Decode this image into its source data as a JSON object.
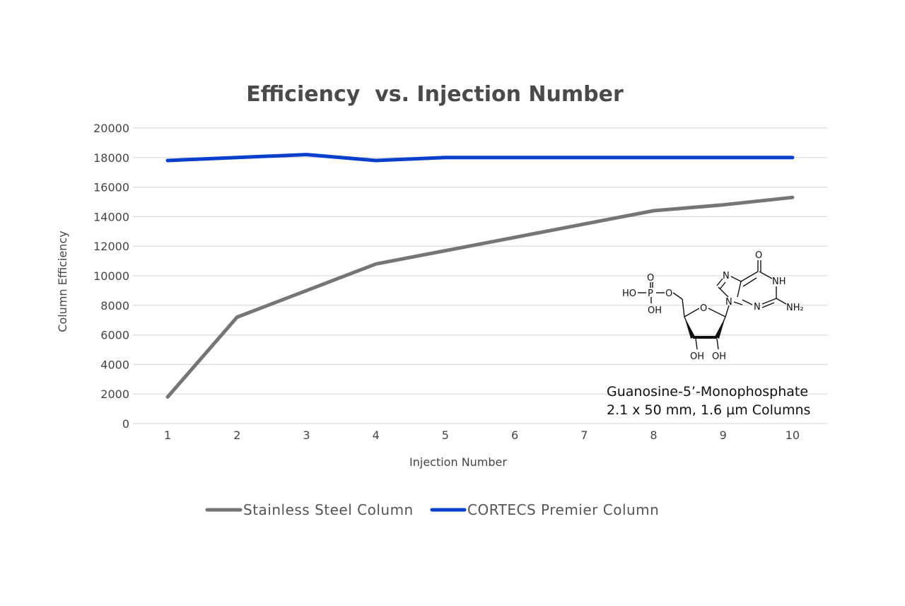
{
  "chart_data": {
    "type": "line",
    "title": "Efficiency  vs. Injection Number",
    "xlabel": "Injection Number",
    "ylabel": "Column Efficiency",
    "x": [
      1,
      2,
      3,
      4,
      5,
      6,
      7,
      8,
      9,
      10
    ],
    "ylim": [
      0,
      20000
    ],
    "yticks": [
      0,
      2000,
      4000,
      6000,
      8000,
      10000,
      12000,
      14000,
      16000,
      18000,
      20000
    ],
    "grid": true,
    "legend_position": "bottom",
    "series": [
      {
        "name": "Stainless Steel Column",
        "color": "#757575",
        "values": [
          1800,
          7200,
          9000,
          10800,
          11700,
          12600,
          13500,
          14400,
          14800,
          15300
        ]
      },
      {
        "name": "CORTECS Premier Column",
        "color": "#0a3fcc",
        "values": [
          17800,
          18000,
          18200,
          17800,
          18000,
          18000,
          18000,
          18000,
          18000,
          18000
        ]
      }
    ],
    "annotations": [
      "Guanosine-5’-Monophosphate",
      "2.1 x 50 mm, 1.6 µm Columns"
    ],
    "structure_labels": {
      "o_top": "O",
      "ho": "HO",
      "p": "P",
      "o_link": "O",
      "oh_p": "OH",
      "ring_o": "O",
      "n_ring": "N",
      "n_top": "N",
      "o_keto": "O",
      "nh": "NH",
      "n_bottom": "N",
      "nh2": "NH₂",
      "oh_left": "OH",
      "oh_right": "OH"
    }
  }
}
